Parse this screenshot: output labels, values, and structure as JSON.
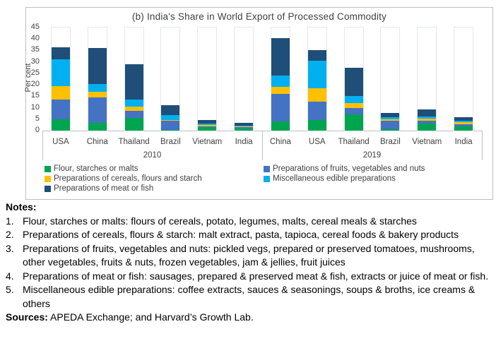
{
  "chart_data": {
    "type": "bar",
    "stacked": true,
    "title": "(b) India's Share in World Export of Processed Commodity",
    "xlabel": "",
    "ylabel": "Per cent",
    "ylim": [
      0,
      45
    ],
    "ytick_step": 5,
    "grid": false,
    "legend_position": "bottom",
    "groups": [
      {
        "label": "2010",
        "categories": [
          "USA",
          "China",
          "Thailand",
          "Brazil",
          "Vietnam",
          "India"
        ]
      },
      {
        "label": "2019",
        "categories": [
          "China",
          "USA",
          "Thailand",
          "Brazil",
          "Vietnam",
          "India"
        ]
      }
    ],
    "series": [
      {
        "name": "Flour, starches or malts",
        "color": "#00A550",
        "values_2010": [
          5,
          3.5,
          5.5,
          0.2,
          1.5,
          0.9
        ],
        "values_2019": [
          4,
          4.5,
          7,
          0.7,
          3.2,
          1.9
        ]
      },
      {
        "name": "Preparations of fruits, vegetables and nuts",
        "color": "#4472C4",
        "values_2010": [
          8.5,
          11,
          3,
          4,
          0.5,
          0.5
        ],
        "values_2019": [
          12,
          8,
          3,
          3.7,
          1,
          1
        ]
      },
      {
        "name": "Preparations of cereals, flours and starch",
        "color": "#FFC000",
        "values_2010": [
          6,
          2.5,
          2,
          0.5,
          0.5,
          0.5
        ],
        "values_2019": [
          3,
          6,
          2,
          0.4,
          0.9,
          0.8
        ]
      },
      {
        "name": "Miscellaneous edible preparations",
        "color": "#00B0F0",
        "values_2010": [
          11.5,
          3.5,
          3,
          2,
          0.5,
          0.4
        ],
        "values_2019": [
          5,
          12,
          3,
          1.2,
          1,
          0.7
        ]
      },
      {
        "name": "Preparations of meat or fish",
        "color": "#1F4E79",
        "values_2010": [
          5.5,
          15.5,
          15.5,
          4.5,
          1.5,
          1
        ],
        "values_2019": [
          16.5,
          4.5,
          12.5,
          1.8,
          3.3,
          1.4
        ]
      }
    ]
  },
  "legend": {
    "columns": [
      [
        "Flour, starches or malts",
        "Preparations of cereals, flours and starch",
        "Preparations of meat or fish"
      ],
      [
        "Preparations of fruits, vegetables and nuts",
        "Miscellaneous edible preparations"
      ]
    ]
  },
  "notes": {
    "heading": "Notes:",
    "items": [
      "Flour, starches or malts: flours of cereals, potato, legumes, malts, cereal meals & starches",
      "Preparations of cereals, flours & starch: malt extract, pasta, tapioca, cereal foods & bakery products",
      "Preparations of fruits, vegetables and nuts: pickled vegs, prepared or preserved tomatoes, mushrooms, other vegetables, fruits & nuts, frozen vegetables, jam & jellies, fruit juices",
      "Preparations of meat or fish: sausages, prepared & preserved meat & fish, extracts or juice of meat or fish.",
      "Miscellaneous edible preparations: coffee extracts, sauces & seasonings, soups & broths, ice creams & others"
    ],
    "sources_label": "Sources:",
    "sources_text": " APEDA Exchange; and Harvard’s Growth Lab."
  }
}
